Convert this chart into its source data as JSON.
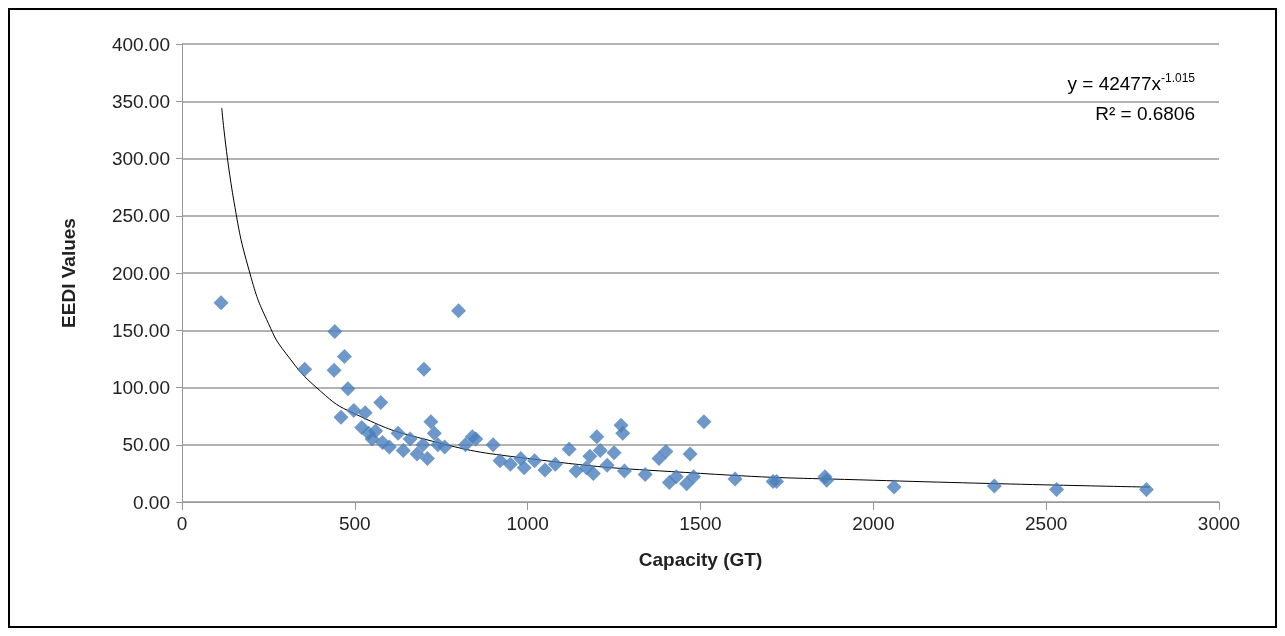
{
  "chart_data": {
    "type": "scatter",
    "xlabel": "Capacity (GT)",
    "ylabel": "EEDI Values",
    "xlim": [
      0,
      3000
    ],
    "xticks": [
      0,
      500,
      1000,
      1500,
      2000,
      2500,
      3000
    ],
    "ylim": [
      0,
      400
    ],
    "yticks": [
      {
        "value": 0,
        "label": "0.00"
      },
      {
        "value": 50,
        "label": "50.00"
      },
      {
        "value": 100,
        "label": "100.00"
      },
      {
        "value": 150,
        "label": "150.00"
      },
      {
        "value": 200,
        "label": "200.00"
      },
      {
        "value": 250,
        "label": "250.00"
      },
      {
        "value": 300,
        "label": "300.00"
      },
      {
        "value": 350,
        "label": "350.00"
      },
      {
        "value": 400,
        "label": "400.00"
      }
    ],
    "grid": "y",
    "marker": "diamond",
    "annotations": [
      "y = 42477x$^{-1.015}$",
      "R² = 0.6806"
    ],
    "series": [
      {
        "color": "#4a7ebb",
        "x": [
          113,
          355,
          442,
          440,
          470,
          480,
          460,
          575,
          497,
          530,
          520,
          540,
          550,
          560,
          580,
          600,
          625,
          640,
          660,
          680,
          700,
          697,
          710,
          720,
          730,
          740,
          760,
          800,
          820,
          840,
          850,
          900,
          920,
          950,
          980,
          990,
          1020,
          1050,
          1080,
          1120,
          1140,
          1170,
          1180,
          1190,
          1200,
          1210,
          1230,
          1250,
          1270,
          1275,
          1280,
          1340,
          1380,
          1400,
          1410,
          1430,
          1460,
          1470,
          1480,
          1510,
          1600,
          1710,
          1720,
          1860,
          1865,
          2060,
          2350,
          2530,
          2790
        ],
        "values": [
          174,
          116,
          149,
          115,
          127,
          99,
          74,
          87,
          80,
          78,
          65,
          60,
          55,
          62,
          52,
          48,
          60,
          45,
          55,
          42,
          116,
          50,
          38,
          70,
          60,
          50,
          48,
          167,
          50,
          57,
          55,
          50,
          36,
          33,
          38,
          30,
          36,
          28,
          33,
          46,
          27,
          30,
          40,
          25,
          57,
          45,
          32,
          43,
          67,
          60,
          27,
          24,
          38,
          44,
          17,
          22,
          16,
          42,
          22,
          70,
          20,
          18,
          18,
          22,
          19,
          13,
          14,
          11,
          11
        ]
      },
      {
        "type": "line",
        "color": "#000000",
        "marker": "none",
        "x": [
          115,
          150,
          200,
          250,
          300,
          400,
          500,
          700,
          1000,
          1500,
          2000,
          2800
        ],
        "values": [
          344,
          263,
          196,
          156,
          130,
          97,
          77,
          55,
          38,
          25,
          19,
          13
        ]
      }
    ]
  }
}
